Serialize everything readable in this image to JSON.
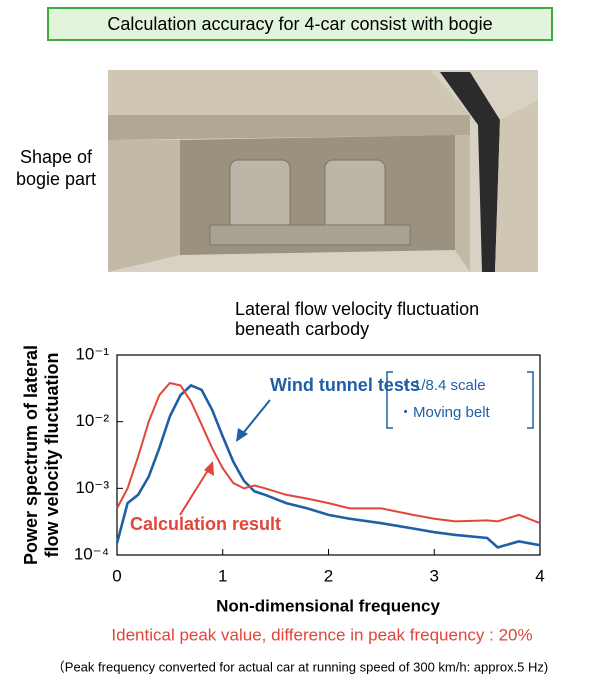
{
  "header": {
    "title": "Calculation accuracy for 4-car consist with bogie"
  },
  "image_label": [
    "Shape of",
    "bogie part"
  ],
  "chart_data": {
    "type": "line",
    "title": [
      "Lateral flow velocity fluctuation",
      "beneath carbody"
    ],
    "ylabel": [
      "Power spectrum of lateral",
      "flow velocity fluctuation"
    ],
    "xlabel": "Non-dimensional frequency",
    "x": [
      0,
      0.1,
      0.2,
      0.3,
      0.4,
      0.5,
      0.6,
      0.7,
      0.8,
      0.9,
      1.0,
      1.1,
      1.2,
      1.3,
      1.4,
      1.6,
      1.8,
      2.0,
      2.2,
      2.5,
      2.8,
      3.0,
      3.2,
      3.5,
      3.6,
      3.8,
      4.0
    ],
    "series": [
      {
        "name": "Wind tunnel tests",
        "color": "#1f5fa6",
        "values": [
          0.00015,
          0.0006,
          0.0008,
          0.0015,
          0.004,
          0.012,
          0.025,
          0.035,
          0.03,
          0.015,
          0.006,
          0.0025,
          0.0013,
          0.0009,
          0.0008,
          0.0006,
          0.0005,
          0.0004,
          0.00035,
          0.0003,
          0.00025,
          0.00022,
          0.0002,
          0.00018,
          0.00013,
          0.00016,
          0.00014
        ]
      },
      {
        "name": "Calculation result",
        "color": "#e0463a",
        "values": [
          0.0005,
          0.001,
          0.003,
          0.01,
          0.025,
          0.038,
          0.035,
          0.02,
          0.009,
          0.004,
          0.002,
          0.0012,
          0.001,
          0.0011,
          0.001,
          0.0008,
          0.0007,
          0.0006,
          0.0005,
          0.0005,
          0.0004,
          0.00035,
          0.00032,
          0.00033,
          0.00032,
          0.0004,
          0.0003
        ]
      }
    ],
    "wind_notes": [
      "・1/8.4 scale",
      "・Moving belt"
    ],
    "xlim": [
      0,
      4
    ],
    "xticks": [
      0,
      1,
      2,
      3,
      4
    ],
    "ylim": [
      0.0001,
      0.1
    ],
    "log_y": true,
    "yticks": [
      {
        "value": 0.0001,
        "label": "10⁻⁴"
      },
      {
        "value": 0.001,
        "label": "10⁻³"
      },
      {
        "value": 0.01,
        "label": "10⁻²"
      },
      {
        "value": 0.1,
        "label": "10⁻¹"
      }
    ]
  },
  "footer": {
    "result": "Identical peak value, difference in peak frequency : 20%",
    "note": "（Peak frequency converted for actual car at running speed of 300 km/h: approx.5 Hz)"
  }
}
